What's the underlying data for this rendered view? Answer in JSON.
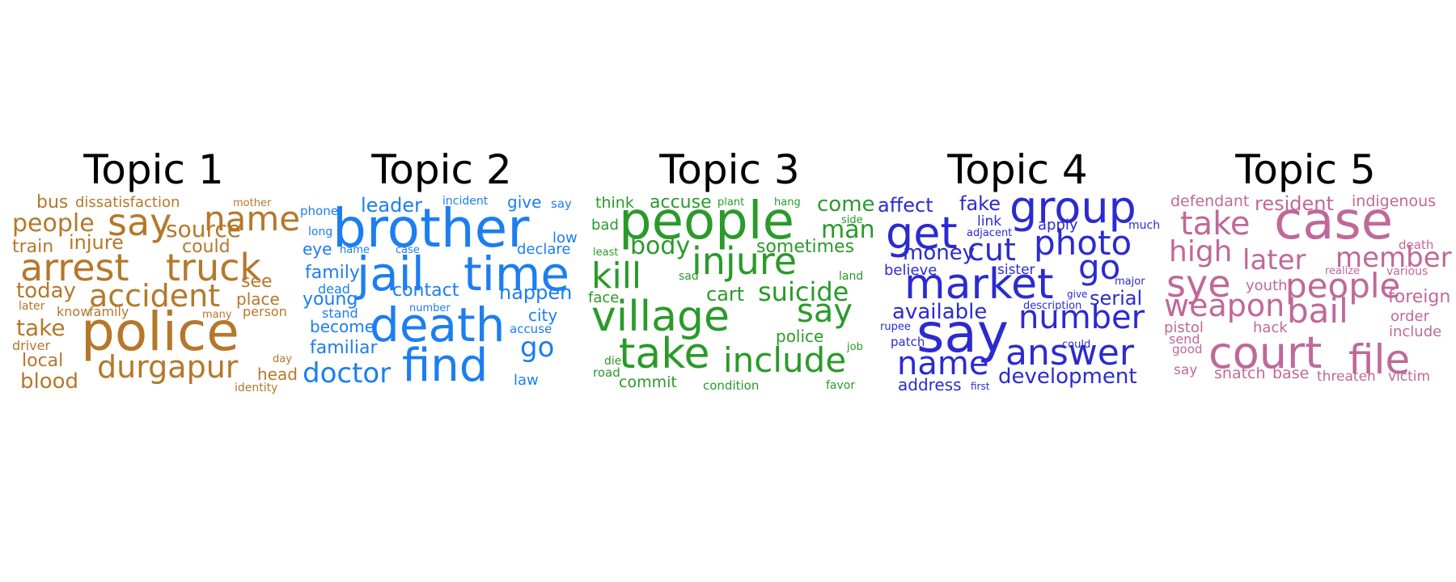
{
  "topics": [
    {
      "title": "Topic 1",
      "color": "#b5782a",
      "words": [
        "bus",
        "dissatisfaction",
        "mother",
        "people",
        "say",
        "name",
        "source",
        "injure",
        "train",
        "could",
        "arrest",
        "truck",
        "today",
        "accident",
        "see",
        "place",
        "later",
        "know",
        "family",
        "many",
        "person",
        "take",
        "police",
        "driver",
        "local",
        "day",
        "durgapur",
        "head",
        "blood",
        "identity"
      ]
    },
    {
      "title": "Topic 2",
      "color": "#1c7ef0",
      "words": [
        "phone",
        "leader",
        "incident",
        "give",
        "say",
        "brother",
        "long",
        "low",
        "eye",
        "name",
        "case",
        "declare",
        "family",
        "jail",
        "time",
        "dead",
        "contact",
        "happen",
        "young",
        "number",
        "stand",
        "death",
        "city",
        "become",
        "accuse",
        "familiar",
        "go",
        "doctor",
        "find",
        "law"
      ]
    },
    {
      "title": "Topic 3",
      "color": "#2a9a2a",
      "words": [
        "think",
        "accuse",
        "plant",
        "hang",
        "come",
        "people",
        "side",
        "bad",
        "man",
        "body",
        "least",
        "sometimes",
        "injure",
        "kill",
        "sad",
        "land",
        "cart",
        "suicide",
        "face",
        "village",
        "say",
        "police",
        "job",
        "take",
        "include",
        "die",
        "road",
        "commit",
        "condition",
        "favor"
      ]
    },
    {
      "title": "Topic 4",
      "color": "#2b2bd0",
      "words": [
        "affect",
        "fake",
        "group",
        "get",
        "link",
        "apply",
        "much",
        "adjacent",
        "photo",
        "money",
        "cut",
        "go",
        "believe",
        "sister",
        "major",
        "market",
        "give",
        "serial",
        "available",
        "description",
        "number",
        "rupee",
        "patch",
        "say",
        "could",
        "name",
        "answer",
        "development",
        "address",
        "first"
      ]
    },
    {
      "title": "Topic 5",
      "color": "#c0689a",
      "words": [
        "defendant",
        "resident",
        "indigenous",
        "case",
        "take",
        "death",
        "high",
        "member",
        "later",
        "realize",
        "various",
        "sye",
        "people",
        "youth",
        "foreign",
        "weapon",
        "bail",
        "pistol",
        "hack",
        "order",
        "send",
        "include",
        "good",
        "court",
        "file",
        "say",
        "snatch",
        "base",
        "threaten",
        "victim"
      ]
    }
  ]
}
